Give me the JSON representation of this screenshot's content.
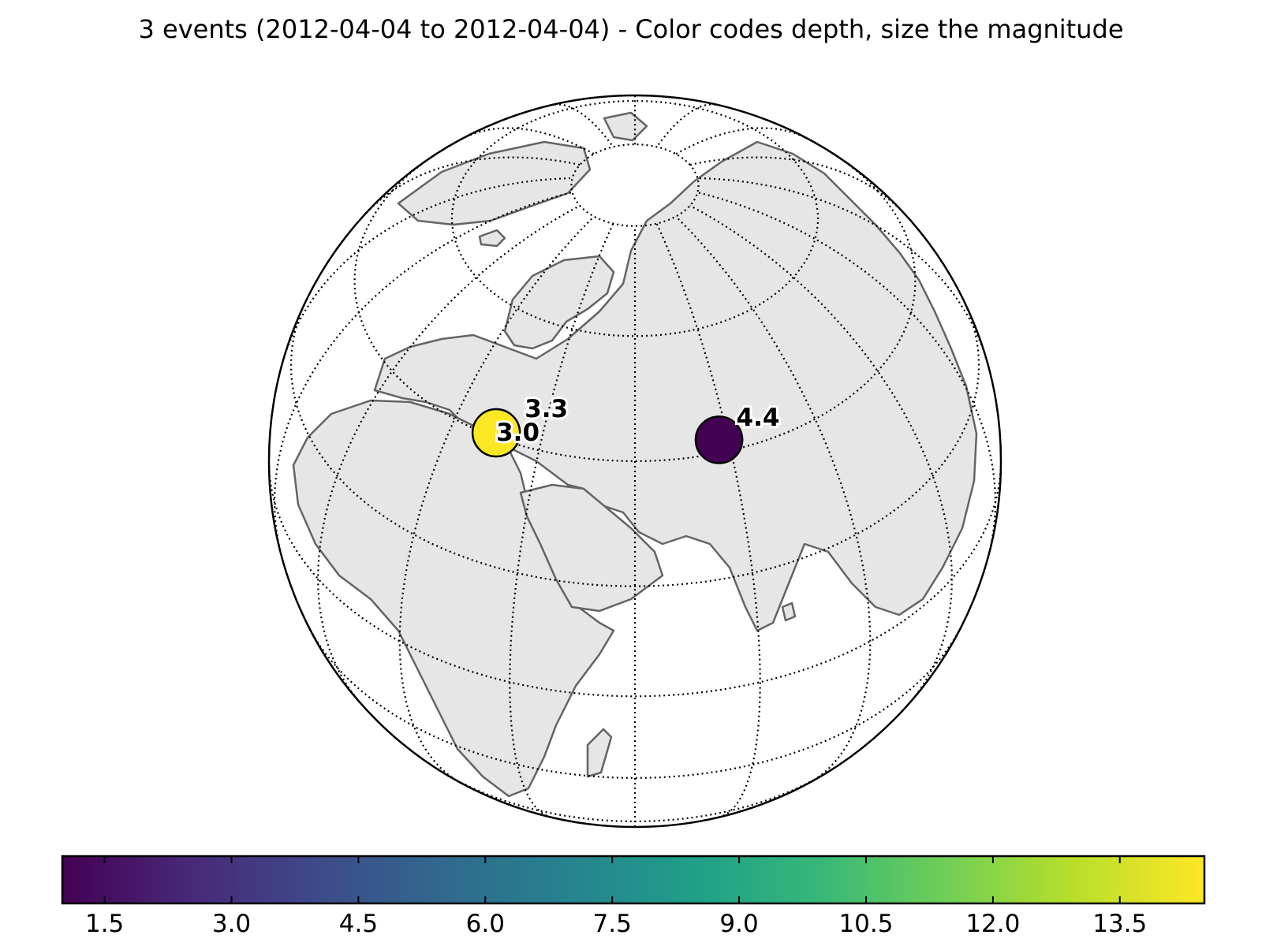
{
  "title": "3 events (2012-04-04 to 2012-04-04) - Color codes depth, size the magnitude",
  "colors": {
    "land": "#e6e6e6",
    "coast": "#646464",
    "borders": "#b4b4b4",
    "graticule": "#000000",
    "ocean": "#ffffff"
  },
  "chart_data": {
    "type": "map",
    "projection": "orthographic",
    "center": {
      "lon": 60,
      "lat": 40
    },
    "graticule": {
      "lat_step": 20,
      "lon_step": 20,
      "style": "dotted"
    },
    "events": [
      {
        "label": "4.4",
        "magnitude": 4.4,
        "depth": 1.0,
        "color": "#440154"
      },
      {
        "label": "3.3",
        "magnitude": 3.3,
        "depth": 6.8,
        "color": "#23878d"
      },
      {
        "label": "3.0",
        "magnitude": 3.0,
        "depth": 14.5,
        "color": "#fde725"
      }
    ],
    "colorbar": {
      "label": "",
      "colormap": "viridis",
      "range": [
        1.0,
        14.5
      ],
      "ticks": [
        "1.5",
        "3.0",
        "4.5",
        "6.0",
        "7.5",
        "9.0",
        "10.5",
        "12.0",
        "13.5"
      ]
    }
  }
}
